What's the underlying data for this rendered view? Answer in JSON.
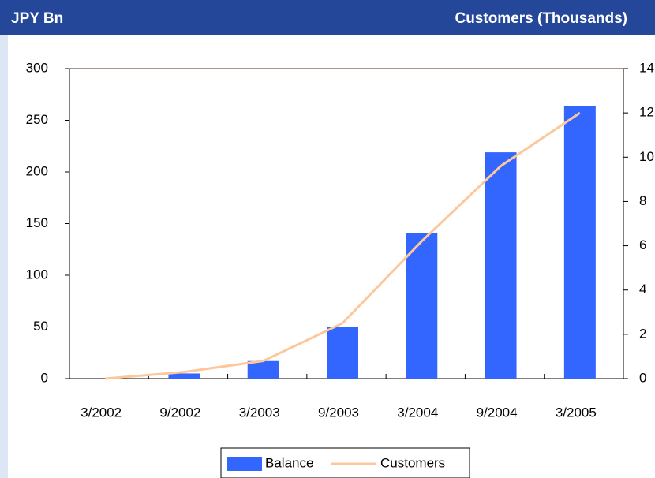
{
  "chart_data": {
    "type": "bar_line",
    "left_axis_label": "JPY Bn",
    "right_axis_label": "Customers (Thousands)",
    "categories": [
      "3/2002",
      "9/2002",
      "3/2003",
      "9/2003",
      "3/2004",
      "9/2004",
      "3/2005"
    ],
    "series": [
      {
        "name": "Balance",
        "color": "#3366ff",
        "type": "bar",
        "values": [
          0,
          5,
          17,
          50,
          141,
          219,
          264
        ]
      },
      {
        "name": "Customers",
        "color": "#fcc89b",
        "type": "line",
        "axis": "y2",
        "values": [
          0,
          0.3,
          0.8,
          2.5,
          6.2,
          9.6,
          12.0
        ]
      }
    ],
    "ylim": [
      0,
      300
    ],
    "yticks": [
      0,
      50,
      100,
      150,
      200,
      250,
      300
    ],
    "y2lim": [
      0,
      14
    ],
    "y2ticks": [
      0,
      2,
      4,
      6,
      8,
      10,
      12,
      14
    ]
  }
}
